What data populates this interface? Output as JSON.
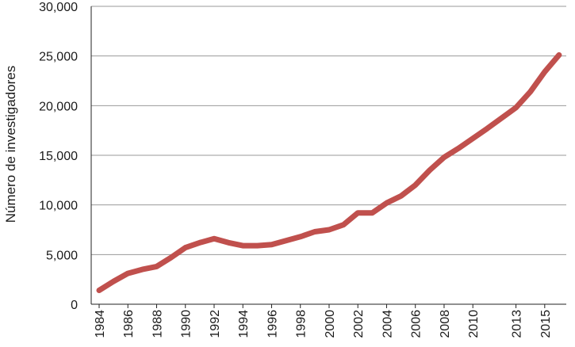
{
  "chart_data": {
    "type": "line",
    "title": "",
    "xlabel": "",
    "ylabel": "Número de investigadores",
    "ylim": [
      0,
      30000
    ],
    "yticks": [
      "0",
      "5,000",
      "10,000",
      "15,000",
      "20,000",
      "25,000",
      "30,000"
    ],
    "grid": "horizontal",
    "line_color": "#c0504d",
    "x_tick_labels": [
      "1984",
      "1986",
      "1988",
      "1990",
      "1992",
      "1994",
      "1996",
      "1998",
      "2000",
      "2002",
      "2004",
      "2006",
      "2008",
      "2010",
      "2013",
      "2015"
    ],
    "series": [
      {
        "x": [
          "1984",
          "1985",
          "1986",
          "1987",
          "1988",
          "1989",
          "1990",
          "1991",
          "1992",
          "1993",
          "1994",
          "1995",
          "1996",
          "1997",
          "1998",
          "1999",
          "2000",
          "2001",
          "2002",
          "2003",
          "2004",
          "2005",
          "2006",
          "2007",
          "2008",
          "2009",
          "2010",
          "2011",
          "2013",
          "2014",
          "2015",
          "2016"
        ],
        "values": [
          1400,
          2300,
          3100,
          3500,
          3800,
          4700,
          5700,
          6200,
          6600,
          6200,
          5900,
          5900,
          6000,
          6400,
          6800,
          7300,
          7500,
          8000,
          9200,
          9200,
          10200,
          10900,
          12000,
          13500,
          14800,
          15700,
          16700,
          17700,
          19800,
          21400,
          23400,
          25100
        ]
      }
    ]
  }
}
